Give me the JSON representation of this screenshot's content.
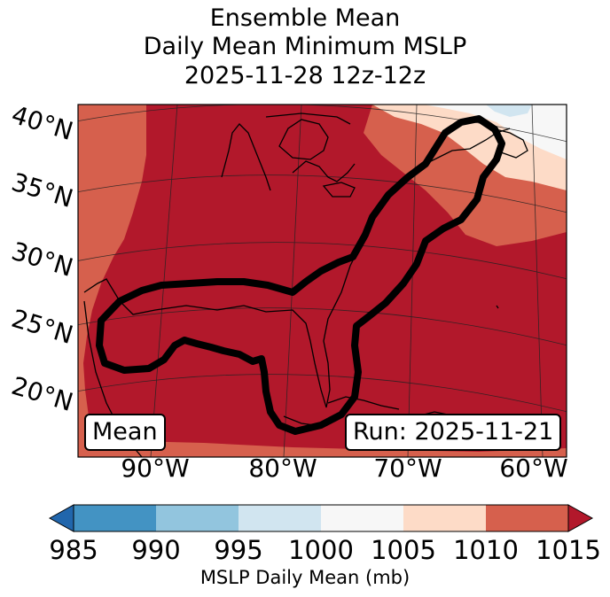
{
  "title": {
    "line1": "Ensemble Mean",
    "line2": "Daily Mean Minimum MSLP",
    "line3": "2025-11-28 12z-12z"
  },
  "map": {
    "lat_labels": [
      "40°N",
      "35°N",
      "30°N",
      "25°N",
      "20°N"
    ],
    "lon_labels": [
      "90°W",
      "80°W",
      "70°W",
      "60°W"
    ],
    "mean_label": "Mean",
    "run_label": "Run: 2025-11-21",
    "colors": {
      "c1010_1015": "#b2182b",
      "c1005_1010": "#d6604d",
      "c1000_1005": "#fddbc7",
      "c995_1000": "#f7f7f7",
      "c990_995": "#d1e5f0",
      "contour": "#000000"
    }
  },
  "colorbar": {
    "ticks": [
      "985",
      "990",
      "995",
      "1000",
      "1005",
      "1010",
      "1015"
    ],
    "label": "MSLP Daily Mean (mb)",
    "colors": [
      "#2166ac",
      "#4393c3",
      "#92c5de",
      "#d1e5f0",
      "#f7f7f7",
      "#fddbc7",
      "#d6604d",
      "#b2182b"
    ]
  }
}
